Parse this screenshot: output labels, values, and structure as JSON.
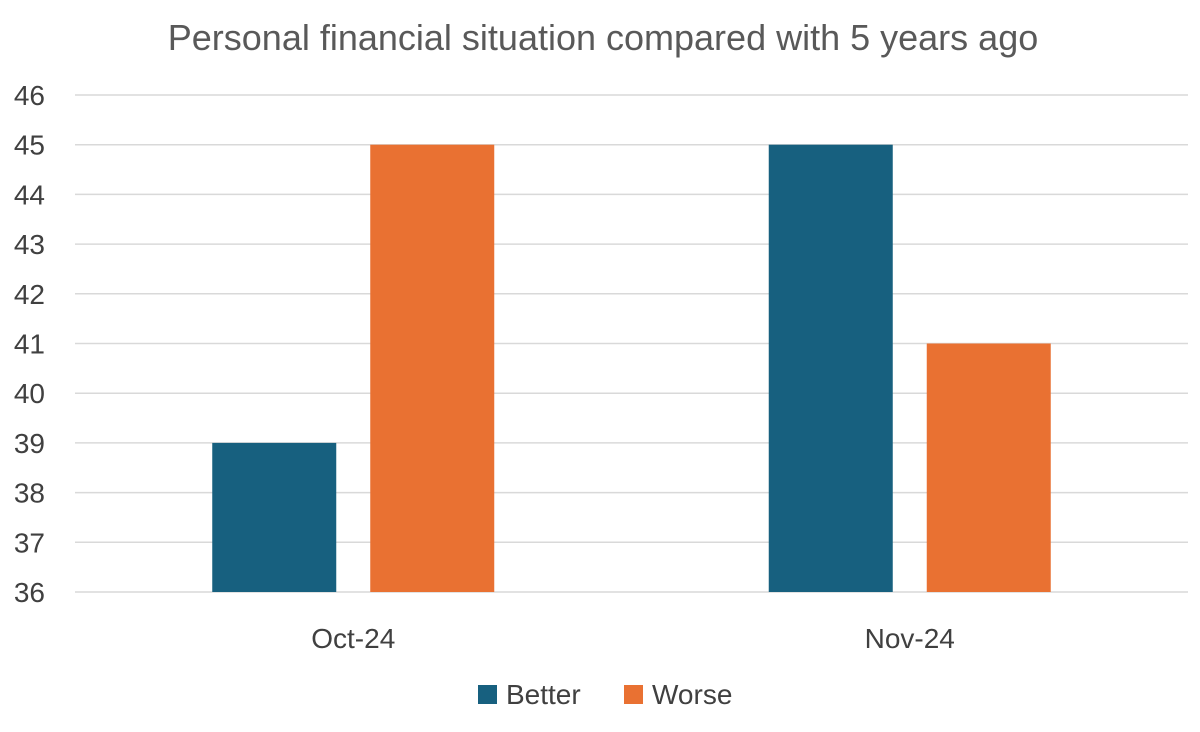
{
  "chart_data": {
    "type": "bar",
    "title": "Personal financial situation compared with 5 years ago",
    "xlabel": "",
    "ylabel": "",
    "categories": [
      "Oct-24",
      "Nov-24"
    ],
    "series": [
      {
        "name": "Better",
        "values": [
          39,
          45
        ],
        "color": "#17607f"
      },
      {
        "name": "Worse",
        "values": [
          45,
          41
        ],
        "color": "#e97132"
      }
    ],
    "ylim": [
      36,
      46
    ],
    "yticks": [
      "36",
      "37",
      "38",
      "39",
      "40",
      "41",
      "42",
      "43",
      "44",
      "45",
      "46"
    ],
    "grid": true,
    "legend": "bottom"
  }
}
